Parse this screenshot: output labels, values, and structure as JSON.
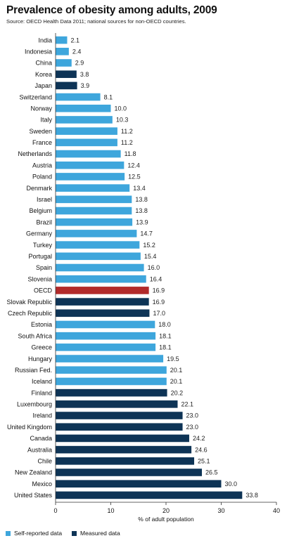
{
  "chart_data": {
    "type": "bar",
    "orientation": "horizontal",
    "title": "Prevalence of obesity among adults, 2009",
    "subtitle": "Source: OECD Health Data 2011; national sources for non-OECD countries.",
    "xlabel": "% of adult population",
    "xlim": [
      0,
      40
    ],
    "xticks": [
      0,
      10,
      20,
      30,
      40
    ],
    "colors": {
      "self": "#3ea6dc",
      "measured": "#0e3456",
      "oecd": "#b22a2a"
    },
    "legend": [
      {
        "key": "self",
        "label": "Self-reported data"
      },
      {
        "key": "measured",
        "label": "Measured data"
      }
    ],
    "categories": [
      "India",
      "Indonesia",
      "China",
      "Korea",
      "Japan",
      "Switzerland",
      "Norway",
      "Italy",
      "Sweden",
      "France",
      "Netherlands",
      "Austria",
      "Poland",
      "Denmark",
      "Israel",
      "Belgium",
      "Brazil",
      "Germany",
      "Turkey",
      "Portugal",
      "Spain",
      "Slovenia",
      "OECD",
      "Slovak Republic",
      "Czech Republic",
      "Estonia",
      "South Africa",
      "Greece",
      "Hungary",
      "Russian Fed.",
      "Iceland",
      "Finland",
      "Luxembourg",
      "Ireland",
      "United Kingdom",
      "Canada",
      "Australia",
      "Chile",
      "New Zealand",
      "Mexico",
      "United States"
    ],
    "values": [
      2.1,
      2.4,
      2.9,
      3.8,
      3.9,
      8.1,
      10.0,
      10.3,
      11.2,
      11.2,
      11.8,
      12.4,
      12.5,
      13.4,
      13.8,
      13.8,
      13.9,
      14.7,
      15.2,
      15.4,
      16.0,
      16.4,
      16.9,
      16.9,
      17.0,
      18.0,
      18.1,
      18.1,
      19.5,
      20.1,
      20.1,
      20.2,
      22.1,
      23.0,
      23.0,
      24.2,
      24.6,
      25.1,
      26.5,
      30.0,
      33.8
    ],
    "labels": [
      "2.1",
      "2.4",
      "2.9",
      "3.8",
      "3.9",
      "8.1",
      "10.0",
      "10.3",
      "11.2",
      "11.2",
      "11.8",
      "12.4",
      "12.5",
      "13.4",
      "13.8",
      "13.8",
      "13.9",
      "14.7",
      "15.2",
      "15.4",
      "16.0",
      "16.4",
      "16.9",
      "16.9",
      "17.0",
      "18.0",
      "18.1",
      "18.1",
      "19.5",
      "20.1",
      "20.1",
      "20.2",
      "22.1",
      "23.0",
      "23.0",
      "24.2",
      "24.6",
      "25.1",
      "26.5",
      "30.0",
      "33.8"
    ],
    "types": [
      "self",
      "self",
      "self",
      "measured",
      "measured",
      "self",
      "self",
      "self",
      "self",
      "self",
      "self",
      "self",
      "self",
      "self",
      "self",
      "self",
      "self",
      "self",
      "self",
      "self",
      "self",
      "self",
      "oecd",
      "measured",
      "measured",
      "self",
      "self",
      "self",
      "self",
      "self",
      "self",
      "measured",
      "measured",
      "measured",
      "measured",
      "measured",
      "measured",
      "measured",
      "measured",
      "measured",
      "measured"
    ]
  }
}
